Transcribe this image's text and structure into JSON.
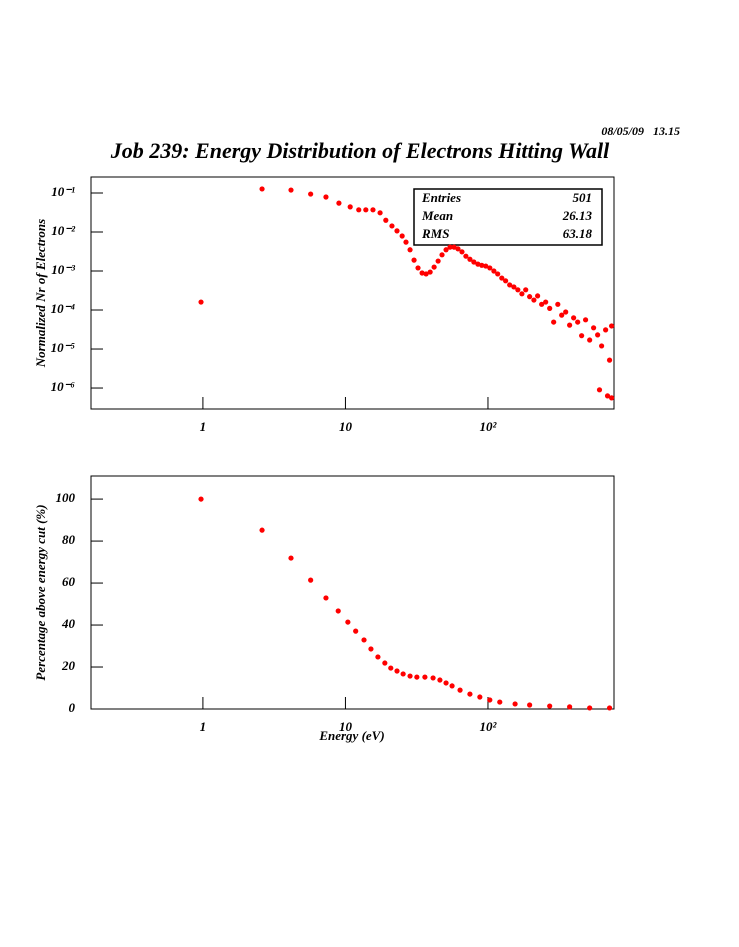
{
  "header": {
    "date": "08/05/09   13.15",
    "title": "Job 239: Energy Distribution of Electrons Hitting Wall"
  },
  "chart_data": [
    {
      "type": "scatter",
      "ylabel": "Normalized Nr of Electrons",
      "xlog": true,
      "ylog": true,
      "color": "#ff0000",
      "xlim": [
        0.164,
        766
      ],
      "ylim": [
        2.9e-07,
        0.257
      ],
      "xticks": [
        1,
        10,
        {
          "value": 100,
          "label": "10²"
        }
      ],
      "yticks": [
        {
          "value": 0.1,
          "label": "10⁻¹"
        },
        {
          "value": 0.01,
          "label": "10⁻²"
        },
        {
          "value": 0.001,
          "label": "10⁻³"
        },
        {
          "value": 0.0001,
          "label": "10⁻⁴"
        },
        {
          "value": 1e-05,
          "label": "10⁻⁵"
        },
        {
          "value": 1e-06,
          "label": "10⁻⁶"
        }
      ],
      "stats": [
        {
          "label": "Entries",
          "value": 501
        },
        {
          "label": "Mean",
          "value": 26.13
        },
        {
          "label": "RMS",
          "value": 63.18
        }
      ],
      "x": [
        0.97,
        2.6,
        4.15,
        5.7,
        7.3,
        9.0,
        10.8,
        12.4,
        13.9,
        15.6,
        17.5,
        19.2,
        21.2,
        23,
        25,
        26.6,
        28.4,
        30.3,
        32.3,
        34.5,
        36.8,
        39.3,
        41.9,
        44.7,
        47.6,
        50.8,
        54.2,
        57.8,
        61.6,
        65.7,
        70,
        74.7,
        79.6,
        85,
        90.5,
        96.5,
        103,
        110,
        117,
        125,
        133,
        142,
        152,
        162,
        173,
        184,
        196,
        210,
        223,
        238,
        254,
        271,
        289,
        309,
        329,
        351,
        374,
        399,
        426,
        454,
        484,
        517,
        551,
        588,
        606,
        627,
        669,
        690,
        713,
        737,
        737
      ],
      "values": [
        0.00016,
        0.127,
        0.119,
        0.094,
        0.079,
        0.055,
        0.044,
        0.037,
        0.037,
        0.037,
        0.031,
        0.02,
        0.0143,
        0.0107,
        0.0079,
        0.0055,
        0.0035,
        0.0019,
        0.0012,
        0.00089,
        0.00084,
        0.00094,
        0.00126,
        0.0018,
        0.0026,
        0.0035,
        0.0041,
        0.0041,
        0.0037,
        0.0031,
        0.0024,
        0.002,
        0.0017,
        0.0015,
        0.0014,
        0.00134,
        0.0012,
        0.001,
        0.00084,
        0.00066,
        0.00056,
        0.00044,
        0.00039,
        0.00033,
        0.00026,
        0.00033,
        0.00022,
        0.00018,
        0.00023,
        0.00014,
        0.00016,
        0.00011,
        4.9e-05,
        0.00014,
        7.4e-05,
        8.9e-05,
        4.1e-05,
        6.3e-05,
        4.9e-05,
        2.2e-05,
        5.6e-05,
        1.7e-05,
        3.5e-05,
        2.3e-05,
        9e-07,
        1.2e-05,
        3.1e-05,
        6.3e-07,
        5.2e-06,
        3.9e-05,
        5.6e-07
      ]
    },
    {
      "type": "scatter",
      "ylabel": "Percentage above energy cut (%)",
      "xlabel": "Energy (eV)",
      "xlog": true,
      "ylog": false,
      "color": "#ff0000",
      "xlim": [
        0.164,
        766
      ],
      "ylim": [
        0,
        111
      ],
      "xticks": [
        1,
        10,
        {
          "value": 100,
          "label": "10²"
        }
      ],
      "yticks": [
        0,
        20,
        40,
        60,
        80,
        100
      ],
      "x": [
        0.97,
        2.6,
        4.15,
        5.7,
        7.3,
        8.9,
        10.4,
        11.8,
        13.5,
        15.1,
        16.9,
        18.9,
        20.8,
        23,
        25.4,
        28.4,
        31.7,
        36.1,
        41.2,
        46,
        50.8,
        56,
        63.7,
        74.7,
        87.7,
        103,
        121,
        155,
        196,
        271,
        374,
        517,
        713
      ],
      "values": [
        100,
        85.2,
        71.9,
        61.4,
        52.9,
        46.7,
        41.4,
        37.1,
        32.9,
        28.6,
        24.8,
        21.9,
        19.5,
        18.1,
        16.7,
        15.7,
        15.2,
        15.2,
        14.8,
        13.8,
        12.4,
        11.0,
        9.0,
        7.1,
        5.7,
        4.3,
        3.3,
        2.4,
        1.9,
        1.4,
        1.0,
        0.5,
        0.5
      ]
    }
  ]
}
